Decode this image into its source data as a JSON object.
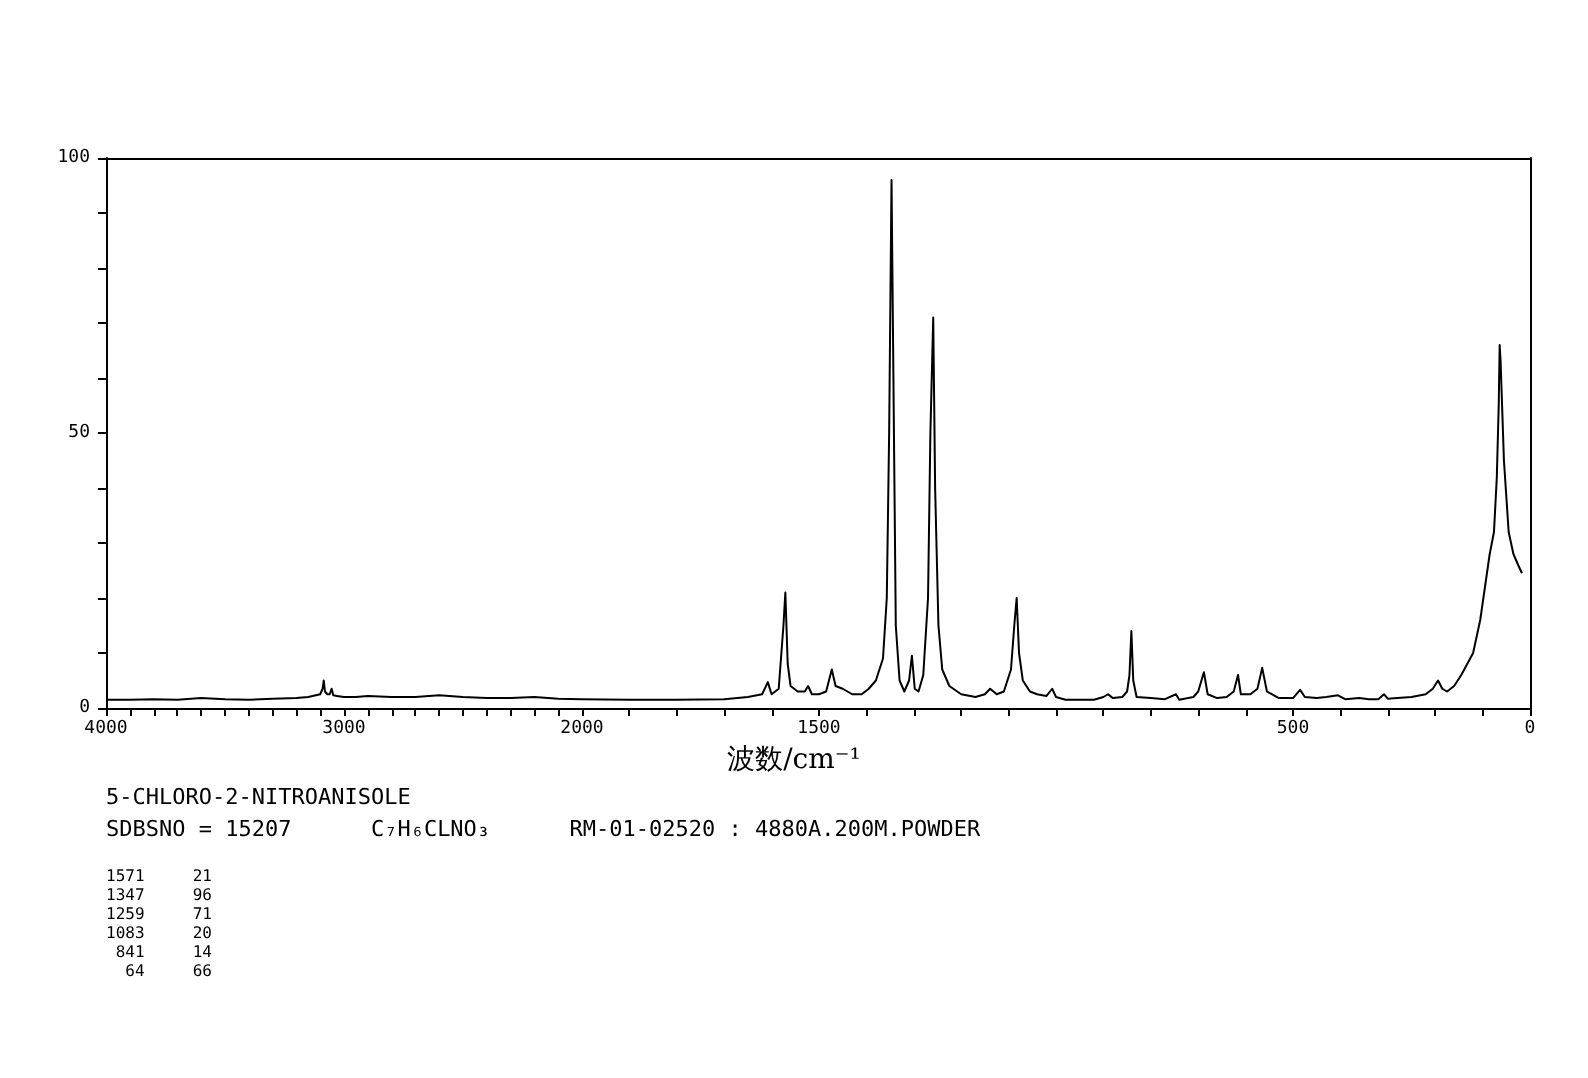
{
  "chart_data": [
    {
      "type": "line",
      "x": [
        4000,
        3900,
        3800,
        3700,
        3600,
        3500,
        3400,
        3300,
        3200,
        3150,
        3100,
        3090,
        3085,
        3080,
        3070,
        3060,
        3052,
        3045,
        3030,
        3000,
        2950,
        2900,
        2800,
        2700,
        2600,
        2500,
        2400,
        2300,
        2200,
        2100,
        2000
      ],
      "series": [
        {
          "color": "#000000",
          "values": [
            1.5,
            1.5,
            1.6,
            1.5,
            1.8,
            1.6,
            1.5,
            1.7,
            1.8,
            2,
            2.5,
            3.5,
            5,
            3,
            2.5,
            2.5,
            3.5,
            2.3,
            2.2,
            2,
            2,
            2.2,
            2,
            2,
            2.3,
            2,
            1.8,
            1.8,
            2,
            1.7,
            1.6
          ]
        }
      ],
      "xlim": [
        4000,
        2000
      ],
      "xticks": [
        4000,
        {
          "value": 3900,
          "label": null
        },
        {
          "value": 3800,
          "label": null
        },
        {
          "value": 3700,
          "label": null
        },
        {
          "value": 3600,
          "label": null
        },
        {
          "value": 3500,
          "label": null
        },
        {
          "value": 3400,
          "label": null
        },
        {
          "value": 3300,
          "label": null
        },
        {
          "value": 3200,
          "label": null
        },
        {
          "value": 3100,
          "label": null
        },
        3000,
        {
          "value": 2900,
          "label": null
        },
        {
          "value": 2800,
          "label": null
        },
        {
          "value": 2700,
          "label": null
        },
        {
          "value": 2600,
          "label": null
        },
        {
          "value": 2500,
          "label": null
        },
        {
          "value": 2400,
          "label": null
        },
        {
          "value": 2300,
          "label": null
        },
        {
          "value": 2200,
          "label": null
        },
        {
          "value": 2100,
          "label": null
        },
        2000
      ],
      "ylim": [
        0,
        100
      ],
      "yticks": [
        0,
        {
          "value": 10,
          "label": null
        },
        {
          "value": 20,
          "label": null
        },
        {
          "value": 30,
          "label": null
        },
        {
          "value": 40,
          "label": null
        },
        50,
        {
          "value": 60,
          "label": null
        },
        {
          "value": 70,
          "label": null
        },
        {
          "value": 80,
          "label": null
        },
        {
          "value": 90,
          "label": null
        },
        100
      ],
      "marker": "none",
      "line_style": "solid",
      "grid": false,
      "annotations": [
        "5-CHLORO-2-NITROANISOLE",
        "SDBSNO = 15207      C₇H₆CLNO₃      RM-01-02520 : 4880A.200M.POWDER",
        "1571     21",
        "1347     96",
        "1259     71",
        "1083     20",
        " 841     14",
        "  64     66"
      ]
    },
    {
      "type": "line",
      "x": [
        2000,
        1900,
        1800,
        1700,
        1650,
        1620,
        1608,
        1600,
        1585,
        1575,
        1571,
        1566,
        1560,
        1545,
        1530,
        1523,
        1515,
        1500,
        1485,
        1473,
        1465,
        1450,
        1430,
        1410,
        1395,
        1380,
        1365,
        1357,
        1352,
        1347,
        1343,
        1338,
        1330,
        1320,
        1310,
        1304,
        1298,
        1290,
        1280,
        1270,
        1265,
        1259,
        1255,
        1248,
        1240,
        1225,
        1200,
        1170,
        1150,
        1139,
        1125,
        1110,
        1095,
        1088,
        1083,
        1078,
        1070,
        1055,
        1040,
        1020,
        1008,
        1000,
        980,
        950,
        920,
        900,
        890,
        880,
        860,
        850,
        845,
        841,
        837,
        830,
        800,
        770,
        747,
        740,
        710,
        700,
        688,
        680,
        660,
        640,
        625,
        616,
        610,
        590,
        575,
        565,
        555,
        530,
        500,
        485,
        475,
        450,
        430,
        405,
        390,
        360,
        340,
        320,
        308,
        300,
        280,
        250,
        220,
        205,
        194,
        185,
        175,
        160,
        145,
        135,
        120,
        105,
        95,
        85,
        76,
        70,
        66,
        64,
        62,
        55,
        45,
        35,
        25,
        17
      ],
      "series": [
        {
          "color": "#000000",
          "values": [
            1.6,
            1.5,
            1.5,
            1.6,
            2,
            2.5,
            4.7,
            2.5,
            3.5,
            15,
            21,
            8,
            4,
            3,
            3,
            4,
            2.5,
            2.5,
            3,
            7,
            4,
            3.5,
            2.5,
            2.5,
            3.5,
            5,
            9,
            20,
            50,
            96,
            60,
            15,
            5,
            3,
            5,
            9.5,
            3.5,
            3,
            6,
            20,
            50,
            71,
            40,
            15,
            7,
            4,
            2.5,
            2,
            2.5,
            3.5,
            2.5,
            3,
            7,
            15,
            20,
            10,
            5,
            3,
            2.5,
            2.2,
            3.5,
            2,
            1.5,
            1.5,
            1.5,
            2,
            2.5,
            1.8,
            2,
            3,
            6,
            14,
            5,
            2,
            1.8,
            1.6,
            2.5,
            1.5,
            2,
            3,
            6.5,
            2.5,
            1.8,
            2,
            3,
            6,
            2.5,
            2.5,
            3.5,
            7.3,
            3,
            1.8,
            1.8,
            3.3,
            2,
            1.8,
            2,
            2.3,
            1.6,
            1.8,
            1.6,
            1.6,
            2.5,
            1.7,
            1.8,
            2,
            2.5,
            3.5,
            5,
            3.5,
            3,
            4,
            6,
            7.6,
            10,
            16,
            22,
            28,
            32,
            42,
            55,
            66,
            63,
            45,
            32,
            28,
            26,
            24.5
          ]
        }
      ],
      "xlim": [
        2000,
        0
      ],
      "xticks": [
        {
          "value": 2000,
          "label": null
        },
        {
          "value": 1900,
          "label": null
        },
        {
          "value": 1800,
          "label": null
        },
        {
          "value": 1700,
          "label": null
        },
        {
          "value": 1600,
          "label": null
        },
        1500,
        {
          "value": 1400,
          "label": null
        },
        {
          "value": 1300,
          "label": null
        },
        {
          "value": 1200,
          "label": null
        },
        {
          "value": 1100,
          "label": null
        },
        {
          "value": 1000,
          "label": null
        },
        {
          "value": 900,
          "label": null
        },
        {
          "value": 800,
          "label": null
        },
        {
          "value": 700,
          "label": null
        },
        {
          "value": 600,
          "label": null
        },
        500,
        {
          "value": 400,
          "label": null
        },
        {
          "value": 300,
          "label": null
        },
        {
          "value": 200,
          "label": null
        },
        {
          "value": 100,
          "label": null
        },
        0
      ],
      "ylim": [
        0,
        100
      ],
      "tick_labels": "x",
      "marker": "none",
      "line_style": "solid",
      "grid": false,
      "xlabel": "波数/cm⁻¹"
    }
  ]
}
